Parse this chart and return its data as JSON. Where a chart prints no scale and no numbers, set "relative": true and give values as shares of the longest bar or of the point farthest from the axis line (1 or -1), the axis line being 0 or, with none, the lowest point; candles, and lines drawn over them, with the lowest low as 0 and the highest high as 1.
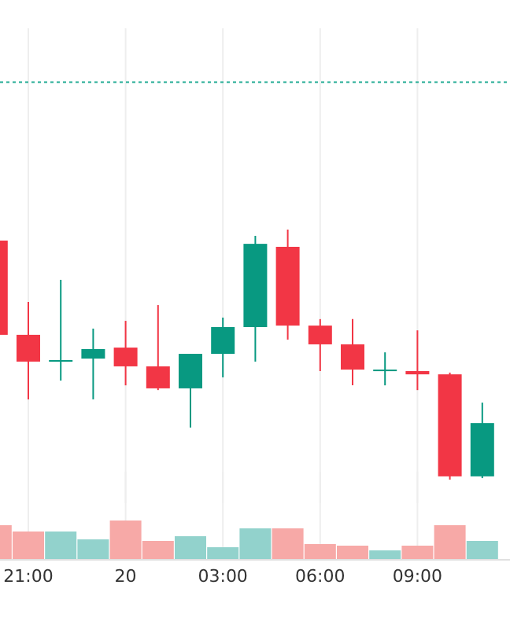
{
  "chart_data": [
    {
      "type": "candlestick",
      "relative": true,
      "categories": [
        null,
        null,
        null,
        null,
        null,
        null,
        null,
        null,
        null,
        null,
        null,
        null,
        null,
        null,
        null,
        null
      ],
      "tick_labels": false,
      "grid": "x",
      "ohlc": [
        [
          0.956,
          0.956,
          0.579,
          0.579
        ],
        [
          0.579,
          0.711,
          0.321,
          0.472
        ],
        [
          0.472,
          0.799,
          0.396,
          0.478
        ],
        [
          0.484,
          0.604,
          0.321,
          0.522
        ],
        [
          0.528,
          0.635,
          0.377,
          0.453
        ],
        [
          0.453,
          0.698,
          0.358,
          0.365
        ],
        [
          0.365,
          0.503,
          0.208,
          0.503
        ],
        [
          0.503,
          0.648,
          0.409,
          0.61
        ],
        [
          0.61,
          0.975,
          0.472,
          0.943
        ],
        [
          0.931,
          1,
          0.56,
          0.616
        ],
        [
          0.616,
          0.642,
          0.434,
          0.541
        ],
        [
          0.541,
          0.642,
          0.377,
          0.44
        ],
        [
          0.437,
          0.509,
          0.377,
          0.44
        ],
        [
          0.434,
          0.597,
          0.358,
          0.421
        ],
        [
          0.421,
          0.428,
          0,
          0.013
        ],
        [
          0.013,
          0.308,
          0.006,
          0.226
        ]
      ],
      "colors": [
        "#f23645",
        "#f23645",
        "#089981",
        "#089981",
        "#f23645",
        "#f23645",
        "#089981",
        "#089981",
        "#089981",
        "#f23645",
        "#f23645",
        "#f23645",
        "#089981",
        "#f23645",
        "#f23645",
        "#089981"
      ],
      "ref_lines": [
        {
          "axis": "y",
          "value": 1.59,
          "color": "#22ab94",
          "line_style": "dotted"
        }
      ]
    },
    {
      "type": "bar",
      "relative": true,
      "categories": [
        null,
        "21:00",
        null,
        null,
        "20",
        null,
        null,
        "03:00",
        null,
        null,
        "06:00",
        null,
        null,
        "09:00",
        null,
        null
      ],
      "tick_labels": "x",
      "grid": "x",
      "values": [
        0.88,
        0.72,
        0.72,
        0.52,
        1,
        0.48,
        0.6,
        0.32,
        0.8,
        0.8,
        0.4,
        0.36,
        0.24,
        0.36,
        0.88,
        0.48
      ],
      "colors": [
        "#f7a9a7",
        "#f7a9a7",
        "#92d2cc",
        "#92d2cc",
        "#f7a9a7",
        "#f7a9a7",
        "#92d2cc",
        "#92d2cc",
        "#92d2cc",
        "#f7a9a7",
        "#f7a9a7",
        "#f7a9a7",
        "#92d2cc",
        "#f7a9a7",
        "#f7a9a7",
        "#92d2cc"
      ]
    }
  ]
}
